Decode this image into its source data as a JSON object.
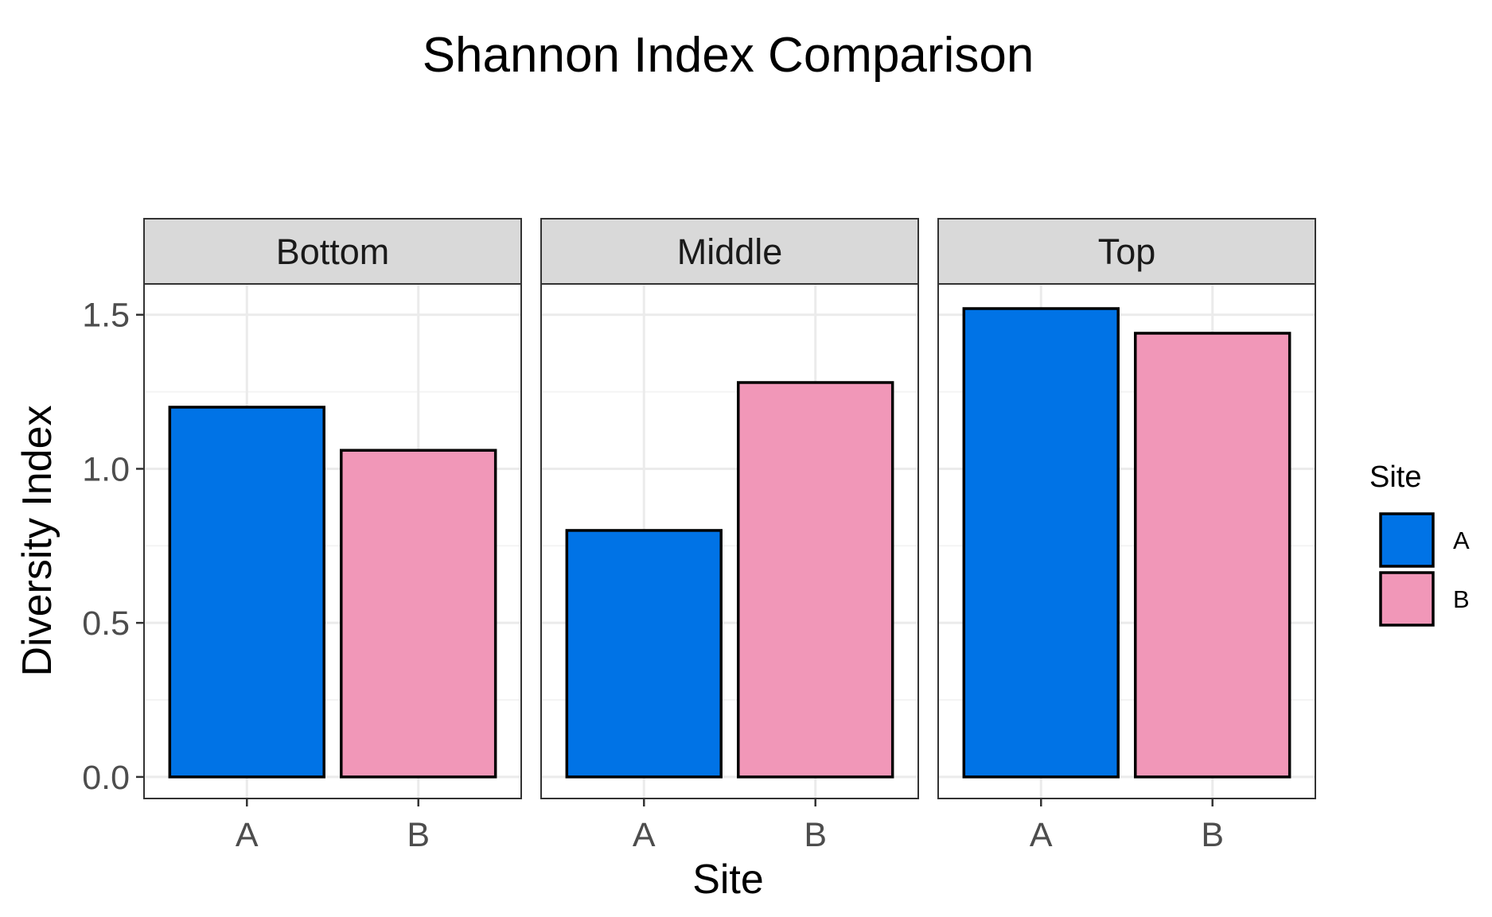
{
  "chart_data": {
    "type": "bar",
    "title": "Shannon Index Comparison",
    "xlabel": "Site",
    "ylabel": "Diversity Index",
    "ylim": [
      -0.07,
      1.6
    ],
    "yticks": [
      "0.0",
      "0.5",
      "1.0",
      "1.5"
    ],
    "ytick_values": [
      0.0,
      0.5,
      1.0,
      1.5
    ],
    "categories": [
      "A",
      "B"
    ],
    "facets": [
      {
        "label": "Bottom",
        "values": [
          1.2,
          1.06
        ]
      },
      {
        "label": "Middle",
        "values": [
          0.8,
          1.28
        ]
      },
      {
        "label": "Top",
        "values": [
          1.52,
          1.44
        ]
      }
    ],
    "legend": {
      "title": "Site",
      "position": "right",
      "items": [
        {
          "label": "A",
          "color": "#0073e6"
        },
        {
          "label": "B",
          "color": "#f197b8"
        }
      ]
    },
    "grid": true
  },
  "colors": {
    "A": "#0073e6",
    "B": "#f197b8",
    "bar_outline": "#000000",
    "strip_fill": "#d9d9d9",
    "grid_major": "#ebebeb",
    "grid_minor": "#f4f4f4",
    "panel_border": "#333333"
  }
}
